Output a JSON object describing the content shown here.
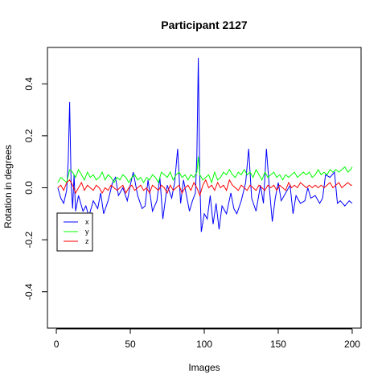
{
  "chart_data": {
    "type": "line",
    "title": "Participant 2127",
    "xlabel": "Images",
    "ylabel": "Rotation in degrees",
    "xlim": [
      -6,
      206
    ],
    "ylim": [
      -0.54,
      0.54
    ],
    "xticks": [
      0,
      50,
      100,
      150,
      200
    ],
    "yticks": [
      -0.4,
      -0.2,
      0.0,
      0.2,
      0.4
    ],
    "xtick_labels": [
      "0",
      "50",
      "100",
      "150",
      "200"
    ],
    "ytick_labels": [
      "-0.4",
      "-0.2",
      "0.0",
      "0.2",
      "0.4"
    ],
    "legend_position": "left-middle",
    "grid": false,
    "series": [
      {
        "name": "x",
        "color": "#0000ff",
        "x": [
          1,
          3,
          5,
          7,
          8,
          9,
          10,
          11,
          12,
          13,
          15,
          18,
          20,
          22,
          25,
          28,
          30,
          32,
          35,
          38,
          40,
          42,
          45,
          48,
          50,
          52,
          55,
          58,
          60,
          62,
          65,
          68,
          70,
          72,
          75,
          78,
          80,
          82,
          84,
          86,
          88,
          90,
          92,
          94,
          95,
          96,
          97,
          98,
          100,
          102,
          104,
          106,
          108,
          110,
          112,
          115,
          118,
          120,
          122,
          125,
          128,
          130,
          132,
          135,
          138,
          140,
          142,
          144,
          146,
          148,
          150,
          152,
          155,
          158,
          160,
          162,
          165,
          168,
          170,
          172,
          175,
          178,
          180,
          182,
          185,
          188,
          190,
          192,
          195,
          198,
          200
        ],
        "y": [
          0.0,
          -0.04,
          -0.06,
          -0.01,
          0.1,
          0.33,
          0.02,
          -0.08,
          0.05,
          -0.09,
          -0.03,
          -0.09,
          -0.07,
          -0.11,
          -0.05,
          -0.08,
          -0.02,
          -0.1,
          -0.05,
          0.02,
          0.04,
          -0.03,
          0.0,
          -0.05,
          0.01,
          0.06,
          -0.03,
          -0.08,
          -0.07,
          0.03,
          -0.09,
          -0.05,
          0.04,
          -0.12,
          0.01,
          -0.04,
          0.02,
          0.15,
          -0.06,
          0.03,
          -0.03,
          -0.09,
          -0.05,
          -0.02,
          0.12,
          0.5,
          0.03,
          -0.17,
          -0.1,
          -0.12,
          -0.03,
          -0.14,
          -0.06,
          -0.16,
          -0.07,
          -0.1,
          -0.02,
          -0.08,
          -0.1,
          -0.05,
          0.02,
          0.15,
          -0.04,
          -0.09,
          0.01,
          -0.06,
          0.15,
          0.0,
          -0.13,
          -0.04,
          0.02,
          -0.05,
          -0.02,
          0.01,
          -0.1,
          -0.03,
          -0.06,
          -0.05,
          0.0,
          -0.04,
          -0.03,
          -0.06,
          -0.04,
          0.05,
          0.04,
          0.06,
          -0.06,
          -0.05,
          -0.07,
          -0.05,
          -0.06
        ]
      },
      {
        "name": "y",
        "color": "#00ff00",
        "x": [
          1,
          3,
          5,
          7,
          9,
          11,
          13,
          15,
          17,
          19,
          21,
          23,
          25,
          27,
          29,
          31,
          33,
          35,
          37,
          39,
          41,
          43,
          45,
          47,
          49,
          51,
          53,
          55,
          57,
          59,
          61,
          63,
          65,
          67,
          69,
          71,
          73,
          75,
          77,
          79,
          81,
          83,
          85,
          87,
          89,
          91,
          93,
          95,
          96,
          97,
          99,
          101,
          103,
          105,
          107,
          109,
          111,
          113,
          115,
          117,
          119,
          121,
          123,
          125,
          127,
          129,
          131,
          133,
          135,
          137,
          139,
          141,
          143,
          145,
          147,
          149,
          151,
          153,
          155,
          157,
          159,
          161,
          163,
          165,
          167,
          169,
          171,
          173,
          175,
          177,
          179,
          181,
          183,
          185,
          187,
          189,
          191,
          193,
          195,
          197,
          199,
          200
        ],
        "y": [
          0.02,
          0.04,
          0.03,
          0.02,
          0.07,
          0.06,
          0.04,
          0.07,
          0.05,
          0.03,
          0.06,
          0.04,
          0.05,
          0.03,
          0.04,
          0.06,
          0.03,
          0.05,
          0.04,
          0.02,
          0.04,
          0.03,
          0.05,
          0.04,
          0.02,
          0.04,
          0.05,
          0.03,
          0.04,
          0.02,
          0.04,
          0.03,
          0.05,
          0.04,
          0.02,
          0.06,
          0.05,
          0.04,
          0.06,
          0.03,
          0.05,
          0.06,
          0.04,
          0.05,
          0.03,
          0.05,
          0.04,
          0.06,
          0.12,
          0.05,
          0.03,
          0.04,
          0.05,
          0.02,
          0.06,
          0.03,
          0.04,
          0.06,
          0.05,
          0.07,
          0.05,
          0.04,
          0.06,
          0.05,
          0.07,
          0.05,
          0.06,
          0.04,
          0.07,
          0.05,
          0.03,
          0.06,
          0.04,
          0.05,
          0.06,
          0.04,
          0.05,
          0.03,
          0.05,
          0.04,
          0.05,
          0.06,
          0.04,
          0.05,
          0.06,
          0.05,
          0.06,
          0.04,
          0.05,
          0.07,
          0.05,
          0.06,
          0.05,
          0.07,
          0.06,
          0.07,
          0.06,
          0.07,
          0.08,
          0.06,
          0.07,
          0.08
        ]
      },
      {
        "name": "z",
        "color": "#ff0000",
        "x": [
          1,
          3,
          5,
          7,
          9,
          11,
          13,
          15,
          17,
          19,
          21,
          23,
          25,
          27,
          29,
          31,
          33,
          35,
          37,
          39,
          41,
          43,
          45,
          47,
          49,
          51,
          53,
          55,
          57,
          59,
          61,
          63,
          65,
          67,
          69,
          71,
          73,
          75,
          77,
          79,
          81,
          83,
          85,
          87,
          89,
          91,
          93,
          95,
          97,
          99,
          101,
          103,
          105,
          107,
          109,
          111,
          113,
          115,
          117,
          119,
          121,
          123,
          125,
          127,
          129,
          131,
          133,
          135,
          137,
          139,
          141,
          143,
          145,
          147,
          149,
          151,
          153,
          155,
          157,
          159,
          161,
          163,
          165,
          167,
          169,
          171,
          173,
          175,
          177,
          179,
          181,
          183,
          185,
          187,
          189,
          191,
          193,
          195,
          197,
          199,
          200
        ],
        "y": [
          0.0,
          0.01,
          -0.01,
          0.02,
          0.03,
          0.01,
          -0.02,
          0.0,
          0.02,
          -0.01,
          0.01,
          0.0,
          -0.01,
          0.01,
          0.0,
          -0.02,
          0.0,
          -0.01,
          0.01,
          0.0,
          -0.01,
          0.0,
          0.01,
          -0.02,
          0.0,
          0.01,
          -0.01,
          0.0,
          0.01,
          -0.01,
          0.0,
          -0.02,
          0.01,
          0.0,
          -0.01,
          0.01,
          0.0,
          -0.02,
          0.01,
          -0.01,
          0.0,
          0.01,
          -0.02,
          0.0,
          0.01,
          -0.01,
          0.02,
          0.0,
          -0.03,
          0.01,
          0.03,
          0.0,
          0.01,
          -0.01,
          0.02,
          0.0,
          0.01,
          -0.01,
          0.03,
          0.01,
          0.0,
          -0.01,
          0.01,
          0.0,
          -0.01,
          0.01,
          0.0,
          -0.01,
          0.01,
          0.0,
          -0.01,
          0.01,
          0.0,
          0.01,
          -0.01,
          0.01,
          0.0,
          -0.01,
          0.02,
          0.0,
          0.01,
          0.0,
          0.02,
          0.01,
          0.0,
          0.01,
          0.0,
          0.01,
          0.0,
          0.01,
          0.0,
          0.01,
          0.02,
          0.0,
          0.01,
          0.02,
          0.0,
          0.01,
          0.02,
          0.01,
          0.01
        ]
      }
    ]
  }
}
